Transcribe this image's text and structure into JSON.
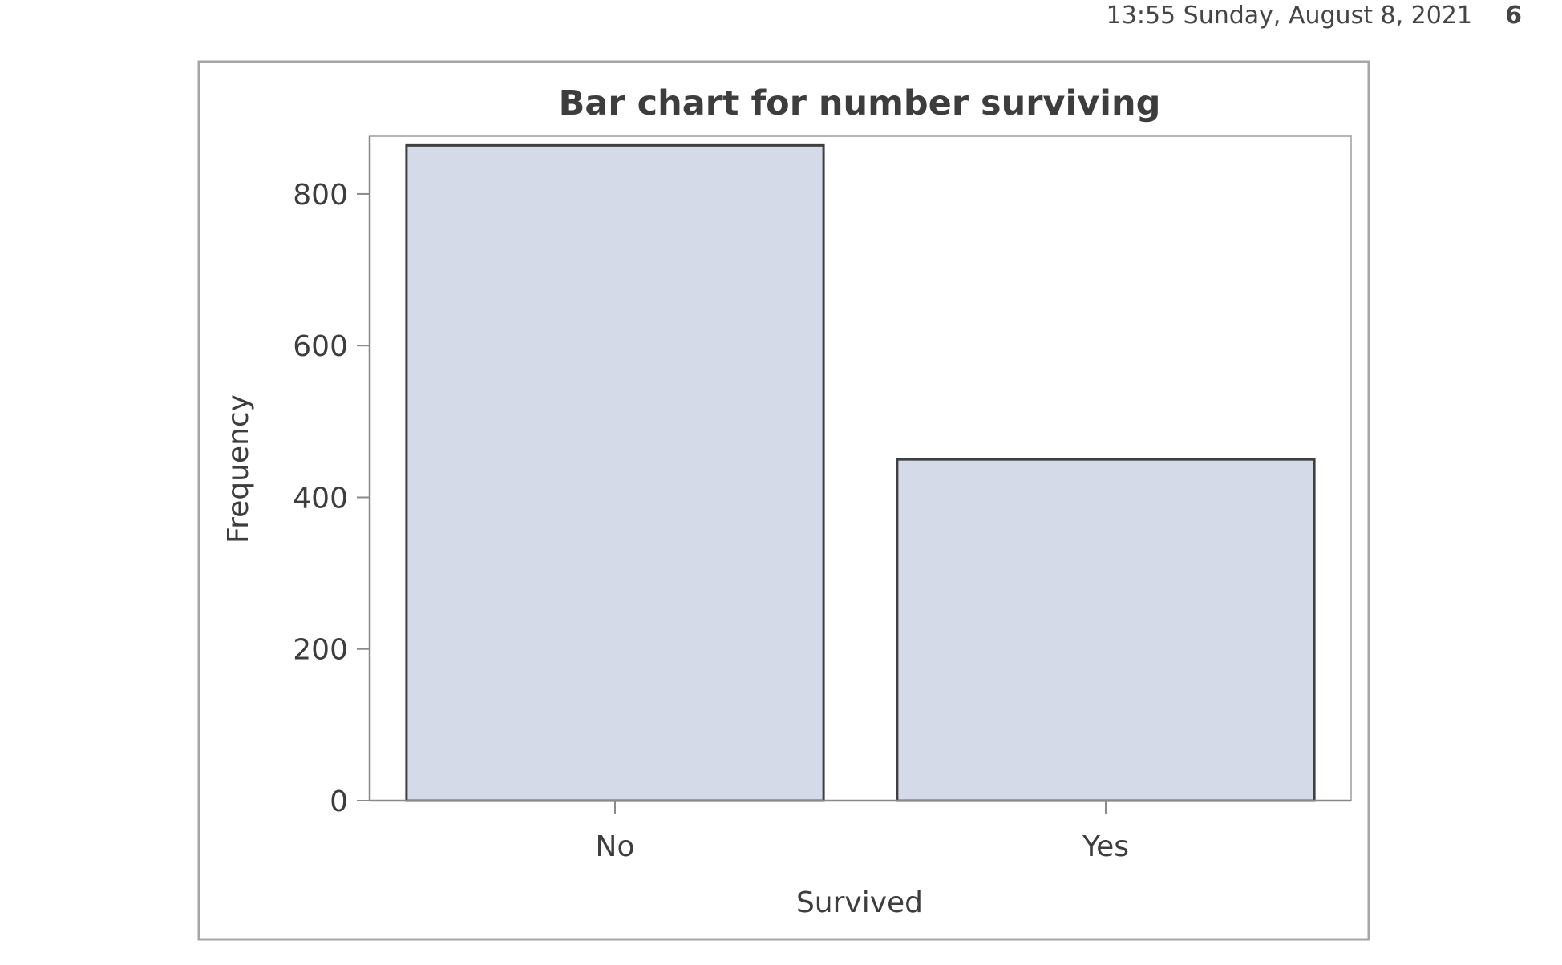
{
  "header": {
    "datetime": "13:55 Sunday, August 8, 2021",
    "page_number": "6"
  },
  "chart_data": {
    "type": "bar",
    "title": "Bar chart for number surviving",
    "xlabel": "Survived",
    "ylabel": "Frequency",
    "categories": [
      "No",
      "Yes"
    ],
    "values": [
      864,
      450
    ],
    "ylim": [
      0,
      876
    ],
    "yticks": [
      0,
      200,
      400,
      600,
      800
    ],
    "grid": false,
    "legend": "none",
    "colors": {
      "bar_fill": "#d4dae8",
      "bar_stroke": "#3f3f3f",
      "axis": "#8a8a8a",
      "text": "#3d3d3d",
      "frame": "#a6a6a6"
    }
  }
}
